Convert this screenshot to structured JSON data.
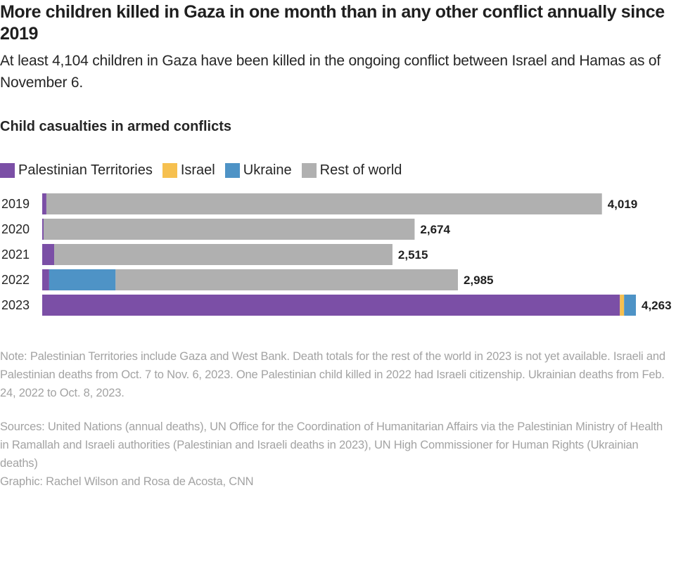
{
  "header": {
    "title": "More children killed in Gaza in one month than in any other conflict annually since 2019",
    "subtitle": "At least 4,104 children in Gaza have been killed in the ongoing conflict between Israel and Hamas as of November 6."
  },
  "chart_data": {
    "type": "bar",
    "orientation": "horizontal",
    "stacked": true,
    "title": "Child casualties in armed conflicts",
    "xlabel": "",
    "ylabel": "",
    "categories": [
      "2019",
      "2020",
      "2021",
      "2022",
      "2023"
    ],
    "series": [
      {
        "name": "Palestinian Territories",
        "color": "#7b4fa6",
        "values": [
          30,
          10,
          86,
          50,
          4148
        ]
      },
      {
        "name": "Israel",
        "color": "#f6c04f",
        "values": [
          0,
          0,
          0,
          0,
          30
        ]
      },
      {
        "name": "Ukraine",
        "color": "#4e93c6",
        "values": [
          0,
          0,
          0,
          477,
          85
        ]
      },
      {
        "name": "Rest of world",
        "color": "#b0b0b0",
        "values": [
          3989,
          2664,
          2429,
          2458,
          0
        ]
      }
    ],
    "totals": [
      4019,
      2674,
      2515,
      2985,
      4263
    ],
    "total_labels": [
      "4,019",
      "2,674",
      "2,515",
      "2,985",
      "4,263"
    ],
    "xlim": [
      0,
      4263
    ],
    "grid": false,
    "legend_position": "top-left"
  },
  "footer": {
    "note": "Note: Palestinian Territories include Gaza and West Bank. Death totals for the rest of the world in 2023 is not yet available. Israeli and Palestinian deaths from Oct. 7 to Nov. 6, 2023. One Palestinian child killed in 2022 had Israeli citizenship. Ukrainian deaths from Feb. 24, 2022 to Oct. 8, 2023.",
    "sources": "Sources: United Nations (annual deaths), UN Office for the Coordination of Humanitarian Affairs via the Palestinian Ministry of Health in Ramallah and Israeli authorities (Palestinian and Israeli deaths in 2023), UN High Commissioner for Human Rights (Ukrainian deaths)",
    "credit": "Graphic: Rachel Wilson and Rosa de Acosta, CNN"
  }
}
